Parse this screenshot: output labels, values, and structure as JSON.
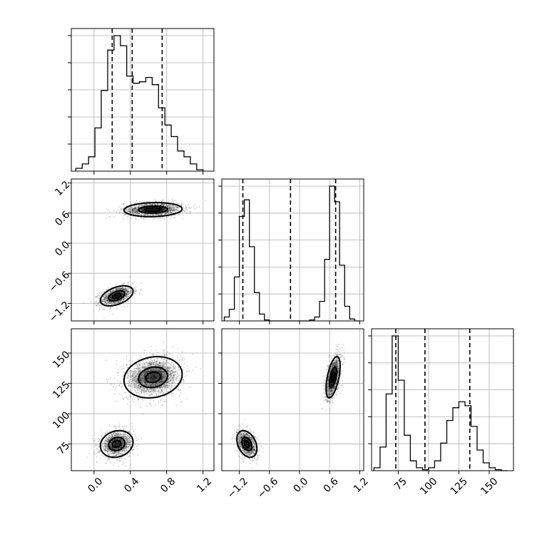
{
  "chart_data": {
    "type": "corner",
    "grid": true,
    "parameters": [
      {
        "range": [
          -0.25,
          1.32
        ],
        "ticks": [
          0.0,
          0.4,
          0.8,
          1.2
        ],
        "tick_labels": [
          "0.0",
          "0.4",
          "0.8",
          "1.2"
        ],
        "quantiles": [
          0.2,
          0.42,
          0.75
        ],
        "hist": {
          "edges": [
            -0.2,
            -0.13,
            -0.06,
            0.01,
            0.08,
            0.15,
            0.22,
            0.29,
            0.36,
            0.43,
            0.5,
            0.57,
            0.64,
            0.71,
            0.78,
            0.85,
            0.92,
            0.99,
            1.06,
            1.13,
            1.2
          ],
          "counts": [
            2,
            5,
            10,
            30,
            56,
            84,
            94,
            87,
            66,
            61,
            62,
            65,
            60,
            44,
            32,
            24,
            14,
            10,
            5,
            1
          ]
        }
      },
      {
        "range": [
          -1.55,
          1.28
        ],
        "ticks": [
          -1.2,
          -0.6,
          0.0,
          0.6,
          1.2
        ],
        "tick_labels": [
          "−1.2",
          "−0.6",
          "0.0",
          "0.6",
          "1.2"
        ],
        "quantiles": [
          -1.13,
          -0.18,
          0.72
        ],
        "hist": {
          "edges": [
            -1.5,
            -1.4,
            -1.3,
            -1.2,
            -1.1,
            -1.0,
            -0.9,
            -0.8,
            -0.7,
            -0.6,
            -0.5,
            -0.4,
            -0.3,
            -0.2,
            -0.1,
            0.0,
            0.1,
            0.2,
            0.3,
            0.4,
            0.5,
            0.6,
            0.7,
            0.8,
            0.9,
            1.0,
            1.1,
            1.2
          ],
          "counts": [
            4,
            12,
            45,
            107,
            124,
            76,
            29,
            7,
            1,
            0,
            0,
            0,
            0,
            0,
            0,
            0,
            0,
            1,
            4,
            20,
            63,
            138,
            122,
            57,
            15,
            2,
            0
          ]
        }
      },
      {
        "range": [
          53,
          170
        ],
        "ticks": [
          75,
          100,
          125,
          150
        ],
        "tick_labels": [
          "75",
          "100",
          "125",
          "150"
        ],
        "quantiles": [
          73,
          97,
          134
        ],
        "hist": {
          "edges": [
            55,
            60,
            65,
            70,
            75,
            80,
            85,
            90,
            95,
            100,
            105,
            110,
            115,
            120,
            125,
            130,
            135,
            140,
            145,
            150,
            155,
            160,
            165
          ],
          "counts": [
            3,
            24,
            78,
            137,
            92,
            36,
            10,
            3,
            1,
            3,
            10,
            28,
            51,
            64,
            70,
            66,
            45,
            21,
            8,
            3,
            1,
            0
          ]
        }
      }
    ],
    "components": [
      {
        "mean": [
          0.25,
          -1.05,
          75
        ],
        "sd": [
          0.09,
          0.1,
          5.5
        ],
        "corr": [
          [
            1,
            0.45,
            0.15
          ],
          [
            0.45,
            1,
            -0.35
          ],
          [
            0.15,
            -0.35,
            1
          ]
        ],
        "weight": 0.42
      },
      {
        "mean": [
          0.65,
          0.67,
          130
        ],
        "sd": [
          0.16,
          0.07,
          8.5
        ],
        "corr": [
          [
            1,
            0.1,
            0.15
          ],
          [
            0.1,
            1,
            0.55
          ],
          [
            0.15,
            0.55,
            1
          ]
        ],
        "weight": 0.58
      }
    ]
  }
}
